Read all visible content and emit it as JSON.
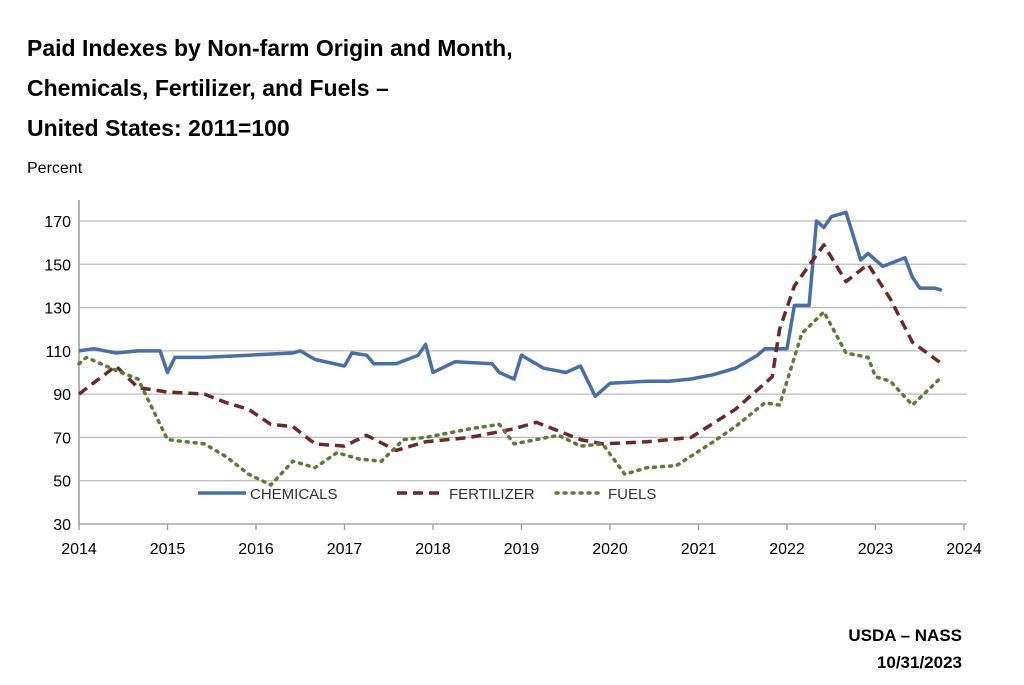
{
  "chart_data": {
    "type": "line",
    "title_lines": [
      "Paid Indexes by Non-farm Origin and Month,",
      "Chemicals, Fertilizer, and Fuels –",
      "United States: 2011=100"
    ],
    "ylabel": "Percent",
    "xlabel": "",
    "xlim": [
      2014,
      2024
    ],
    "ylim": [
      30,
      180
    ],
    "xticks": [
      "2014",
      "2015",
      "2016",
      "2017",
      "2018",
      "2019",
      "2020",
      "2021",
      "2022",
      "2023",
      "2024"
    ],
    "yticks": [
      "30",
      "50",
      "70",
      "90",
      "110",
      "130",
      "150",
      "170"
    ],
    "grid": "horizontal",
    "legend_position": "bottom-inside",
    "series": [
      {
        "name": "CHEMICALS",
        "color": "#4a6fa5",
        "style": "solid",
        "points": [
          [
            "2014-01",
            110
          ],
          [
            "2014-03",
            111
          ],
          [
            "2014-06",
            109
          ],
          [
            "2014-09",
            110
          ],
          [
            "2014-12",
            110
          ],
          [
            "2015-01",
            100
          ],
          [
            "2015-02",
            107
          ],
          [
            "2015-06",
            107
          ],
          [
            "2015-12",
            108
          ],
          [
            "2016-06",
            109
          ],
          [
            "2016-07",
            110
          ],
          [
            "2016-09",
            106
          ],
          [
            "2017-01",
            103
          ],
          [
            "2017-02",
            109
          ],
          [
            "2017-04",
            108
          ],
          [
            "2017-05",
            104
          ],
          [
            "2017-08",
            104
          ],
          [
            "2017-11",
            108
          ],
          [
            "2017-12",
            113
          ],
          [
            "2018-01",
            100
          ],
          [
            "2018-04",
            105
          ],
          [
            "2018-09",
            104
          ],
          [
            "2018-10",
            100
          ],
          [
            "2018-12",
            97
          ],
          [
            "2019-01",
            108
          ],
          [
            "2019-04",
            102
          ],
          [
            "2019-07",
            100
          ],
          [
            "2019-09",
            103
          ],
          [
            "2019-11",
            89
          ],
          [
            "2020-01",
            95
          ],
          [
            "2020-06",
            96
          ],
          [
            "2020-09",
            96
          ],
          [
            "2020-12",
            97
          ],
          [
            "2021-03",
            99
          ],
          [
            "2021-06",
            102
          ],
          [
            "2021-09",
            108
          ],
          [
            "2021-10",
            111
          ],
          [
            "2022-01",
            111
          ],
          [
            "2022-02",
            131
          ],
          [
            "2022-04",
            131
          ],
          [
            "2022-05",
            170
          ],
          [
            "2022-06",
            167
          ],
          [
            "2022-07",
            172
          ],
          [
            "2022-09",
            174
          ],
          [
            "2022-11",
            152
          ],
          [
            "2022-12",
            155
          ],
          [
            "2023-02",
            149
          ],
          [
            "2023-05",
            153
          ],
          [
            "2023-06",
            144
          ],
          [
            "2023-07",
            139
          ],
          [
            "2023-09",
            139
          ],
          [
            "2023-10",
            138
          ]
        ]
      },
      {
        "name": "FERTILIZER",
        "color": "#6b2a2a",
        "style": "dashed",
        "points": [
          [
            "2014-01",
            90
          ],
          [
            "2014-06",
            103
          ],
          [
            "2014-09",
            93
          ],
          [
            "2015-01",
            91
          ],
          [
            "2015-06",
            90
          ],
          [
            "2015-09",
            86
          ],
          [
            "2015-12",
            83
          ],
          [
            "2016-03",
            76
          ],
          [
            "2016-06",
            75
          ],
          [
            "2016-09",
            67
          ],
          [
            "2017-01",
            66
          ],
          [
            "2017-04",
            71
          ],
          [
            "2017-08",
            64
          ],
          [
            "2017-12",
            68
          ],
          [
            "2018-06",
            70
          ],
          [
            "2018-12",
            74
          ],
          [
            "2019-03",
            77
          ],
          [
            "2019-09",
            69
          ],
          [
            "2019-12",
            67
          ],
          [
            "2020-06",
            68
          ],
          [
            "2020-12",
            70
          ],
          [
            "2021-06",
            83
          ],
          [
            "2021-09",
            92
          ],
          [
            "2021-11",
            98
          ],
          [
            "2021-12",
            120
          ],
          [
            "2022-02",
            140
          ],
          [
            "2022-06",
            159
          ],
          [
            "2022-09",
            142
          ],
          [
            "2022-12",
            150
          ],
          [
            "2023-03",
            134
          ],
          [
            "2023-06",
            114
          ],
          [
            "2023-10",
            104
          ]
        ]
      },
      {
        "name": "FUELS",
        "color": "#5e7a3a",
        "style": "dotted",
        "points": [
          [
            "2014-01",
            104
          ],
          [
            "2014-02",
            107
          ],
          [
            "2014-06",
            101
          ],
          [
            "2014-09",
            97
          ],
          [
            "2015-01",
            69
          ],
          [
            "2015-06",
            67
          ],
          [
            "2015-09",
            61
          ],
          [
            "2015-12",
            53
          ],
          [
            "2016-03",
            48
          ],
          [
            "2016-06",
            59
          ],
          [
            "2016-09",
            56
          ],
          [
            "2016-12",
            63
          ],
          [
            "2017-03",
            60
          ],
          [
            "2017-06",
            59
          ],
          [
            "2017-09",
            69
          ],
          [
            "2017-12",
            70
          ],
          [
            "2018-06",
            74
          ],
          [
            "2018-10",
            76
          ],
          [
            "2018-12",
            67
          ],
          [
            "2019-06",
            71
          ],
          [
            "2019-09",
            66
          ],
          [
            "2019-12",
            67
          ],
          [
            "2020-03",
            53
          ],
          [
            "2020-06",
            56
          ],
          [
            "2020-10",
            57
          ],
          [
            "2021-03",
            68
          ],
          [
            "2021-06",
            75
          ],
          [
            "2021-10",
            86
          ],
          [
            "2021-12",
            85
          ],
          [
            "2022-03",
            118
          ],
          [
            "2022-06",
            128
          ],
          [
            "2022-09",
            109
          ],
          [
            "2022-12",
            107
          ],
          [
            "2023-01",
            98
          ],
          [
            "2023-03",
            96
          ],
          [
            "2023-06",
            85
          ],
          [
            "2023-10",
            98
          ]
        ]
      }
    ]
  },
  "footer": {
    "source": "USDA – NASS",
    "date": "10/31/2023"
  }
}
